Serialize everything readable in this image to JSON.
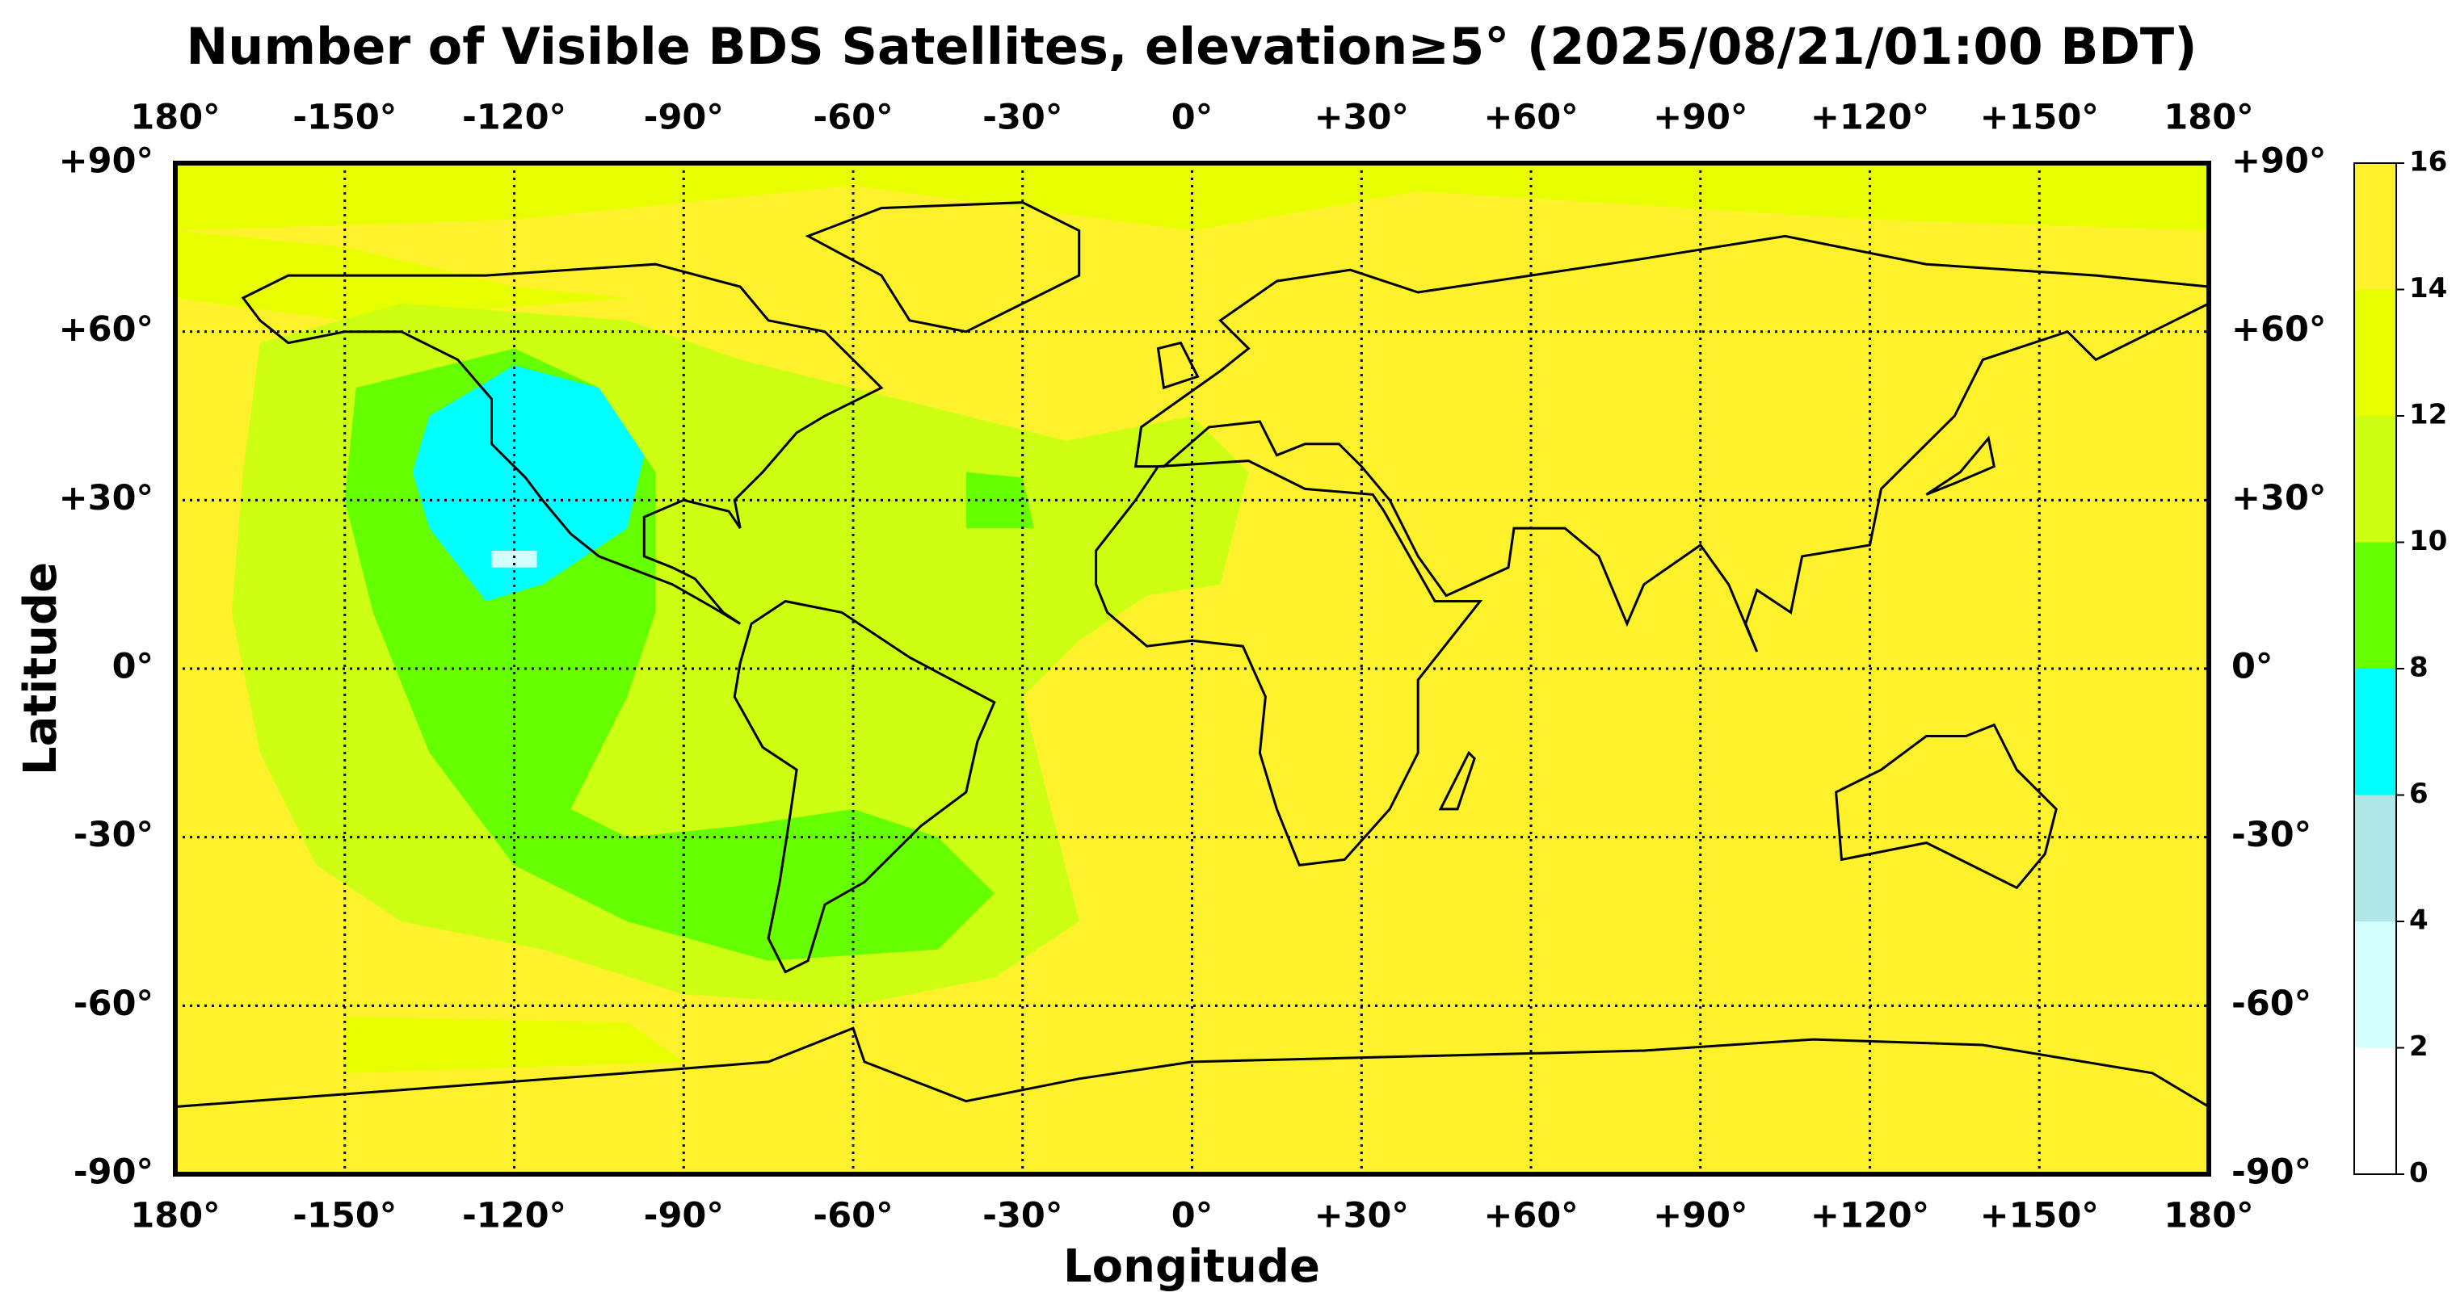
{
  "chart_data": {
    "type": "map",
    "title": "Number of Visible BDS Satellites, elevation≥5° (2025/08/21/01:00 BDT)",
    "xlabel": "Longitude",
    "ylabel": "Latitude",
    "xlim": [
      -180,
      180
    ],
    "ylim": [
      -90,
      90
    ],
    "xticks": [
      {
        "value": -180,
        "label": "180°"
      },
      {
        "value": -150,
        "label": "-150°"
      },
      {
        "value": -120,
        "label": "-120°"
      },
      {
        "value": -90,
        "label": "-90°"
      },
      {
        "value": -60,
        "label": "-60°"
      },
      {
        "value": -30,
        "label": "-30°"
      },
      {
        "value": 0,
        "label": "0°"
      },
      {
        "value": 30,
        "label": "+30°"
      },
      {
        "value": 60,
        "label": "+60°"
      },
      {
        "value": 90,
        "label": "+90°"
      },
      {
        "value": 120,
        "label": "+120°"
      },
      {
        "value": 150,
        "label": "+150°"
      },
      {
        "value": 180,
        "label": "180°"
      }
    ],
    "yticks": [
      {
        "value": 90,
        "label": "+90°"
      },
      {
        "value": 60,
        "label": "+60°"
      },
      {
        "value": 30,
        "label": "+30°"
      },
      {
        "value": 0,
        "label": "0°"
      },
      {
        "value": -30,
        "label": "-30°"
      },
      {
        "value": -60,
        "label": "-60°"
      },
      {
        "value": -90,
        "label": "-90°"
      }
    ],
    "grid": true,
    "colorbar": {
      "ticks": [
        0,
        2,
        4,
        6,
        8,
        10,
        12,
        14,
        16
      ],
      "colors": [
        "#ffffff",
        "#d4ffff",
        "#b0e6e6",
        "#00ffff",
        "#66ff00",
        "#ccff11",
        "#e8ff00",
        "#fcf12a"
      ]
    }
  }
}
